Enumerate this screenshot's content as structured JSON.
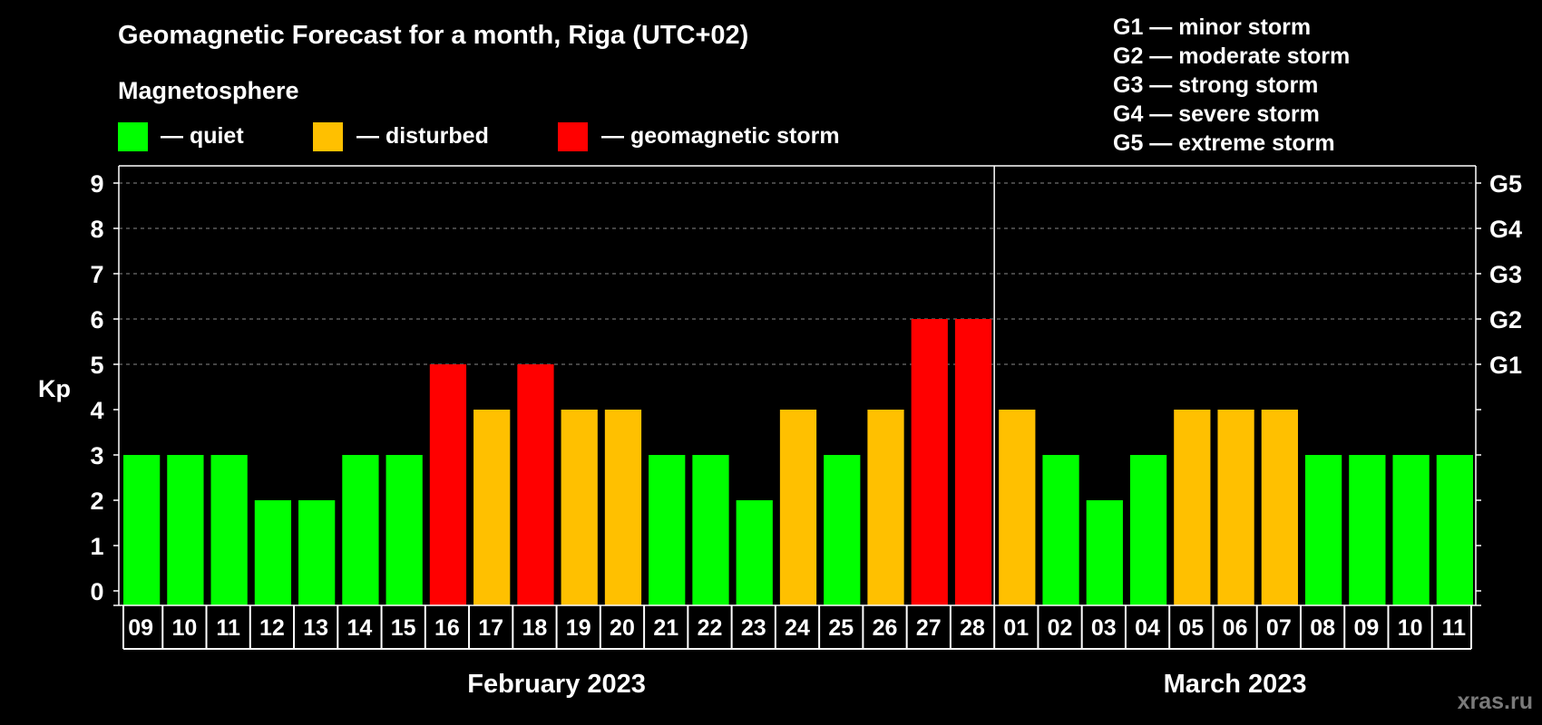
{
  "chart_data": {
    "type": "bar",
    "title": "Geomagnetic Forecast for a month, Riga (UTC+02)",
    "subtitle": "Magnetosphere",
    "ylabel": "Kp",
    "ylim": [
      0,
      9
    ],
    "yticks": [
      "0",
      "1",
      "2",
      "3",
      "4",
      "5",
      "6",
      "7",
      "8",
      "9"
    ],
    "g_ticks": [
      {
        "kp": 5,
        "label": "G1"
      },
      {
        "kp": 6,
        "label": "G2"
      },
      {
        "kp": 7,
        "label": "G3"
      },
      {
        "kp": 8,
        "label": "G4"
      },
      {
        "kp": 9,
        "label": "G5"
      }
    ],
    "legend": [
      {
        "status": "quiet",
        "label": "— quiet",
        "color": "#00ff00"
      },
      {
        "status": "disturbed",
        "label": "— disturbed",
        "color": "#ffc000"
      },
      {
        "status": "storm",
        "label": "— geomagnetic storm",
        "color": "#ff0000"
      }
    ],
    "g_legend": [
      "G1 — minor storm",
      "G2 — moderate storm",
      "G3 — strong storm",
      "G4 — severe storm",
      "G5 — extreme storm"
    ],
    "categories": [
      "09",
      "10",
      "11",
      "12",
      "13",
      "14",
      "15",
      "16",
      "17",
      "18",
      "19",
      "20",
      "21",
      "22",
      "23",
      "24",
      "25",
      "26",
      "27",
      "28",
      "01",
      "02",
      "03",
      "04",
      "05",
      "06",
      "07",
      "08",
      "09",
      "10",
      "11"
    ],
    "values": [
      3,
      3,
      3,
      2,
      2,
      3,
      3,
      5,
      4,
      5,
      4,
      4,
      3,
      3,
      2,
      4,
      3,
      4,
      6,
      6,
      4,
      3,
      2,
      3,
      4,
      4,
      4,
      3,
      3,
      3,
      3
    ],
    "status": [
      "quiet",
      "quiet",
      "quiet",
      "quiet",
      "quiet",
      "quiet",
      "quiet",
      "storm",
      "disturbed",
      "storm",
      "disturbed",
      "disturbed",
      "quiet",
      "quiet",
      "quiet",
      "disturbed",
      "quiet",
      "disturbed",
      "storm",
      "storm",
      "disturbed",
      "quiet",
      "quiet",
      "quiet",
      "disturbed",
      "disturbed",
      "disturbed",
      "quiet",
      "quiet",
      "quiet",
      "quiet"
    ],
    "months": [
      {
        "label": "February 2023",
        "start_index": 0,
        "count": 20
      },
      {
        "label": "March 2023",
        "start_index": 20,
        "count": 11
      }
    ]
  },
  "watermark": "xras.ru"
}
